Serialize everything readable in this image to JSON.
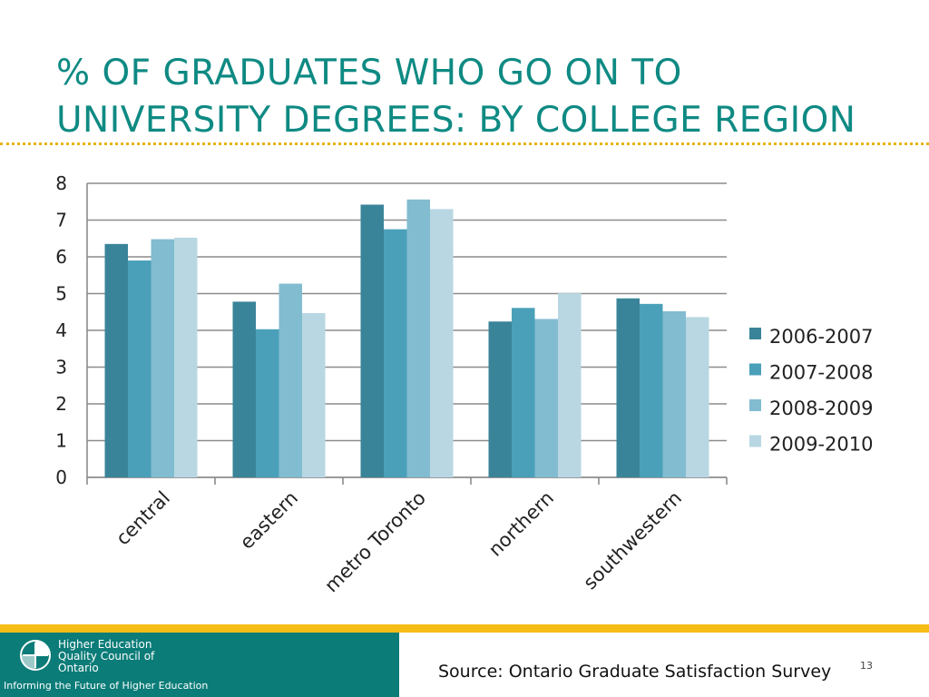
{
  "slide": {
    "title": "% OF GRADUATES WHO GO ON TO UNIVERSITY DEGREES: BY COLLEGE REGION",
    "source": "Source: Ontario Graduate Satisfaction Survey",
    "page_number": "13"
  },
  "footer": {
    "org_name": "Higher Education Quality Council of Ontario",
    "tagline": "Informing the Future of Higher Education"
  },
  "chart_data": {
    "type": "bar",
    "categories": [
      "central",
      "eastern",
      "metro Toronto",
      "northern",
      "southwestern"
    ],
    "series": [
      {
        "name": "2006-2007",
        "color": "#3a8499",
        "values": [
          6.35,
          4.78,
          7.42,
          4.24,
          4.87
        ]
      },
      {
        "name": "2007-2008",
        "color": "#4aa0b9",
        "values": [
          5.9,
          4.03,
          6.75,
          4.61,
          4.72
        ]
      },
      {
        "name": "2008-2009",
        "color": "#82bcd0",
        "values": [
          6.48,
          5.27,
          7.56,
          4.31,
          4.52
        ]
      },
      {
        "name": "2009-2010",
        "color": "#b8d7e2",
        "values": [
          6.52,
          4.47,
          7.3,
          5.01,
          4.36
        ]
      }
    ],
    "ylim": [
      0,
      8
    ],
    "yticks": [
      0,
      1,
      2,
      3,
      4,
      5,
      6,
      7,
      8
    ],
    "xlabel": "",
    "ylabel": "",
    "grid": true,
    "legend": "right"
  }
}
